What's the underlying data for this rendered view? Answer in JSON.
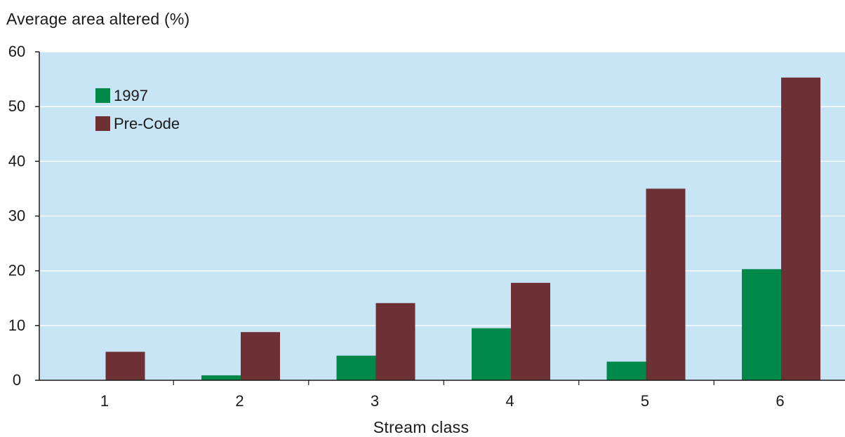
{
  "chart_data": {
    "type": "bar",
    "title": "",
    "ylabel": "Average area altered (%)",
    "xlabel": "Stream class",
    "categories": [
      "1",
      "2",
      "3",
      "4",
      "5",
      "6"
    ],
    "series": [
      {
        "name": "1997",
        "values": [
          0,
          0.9,
          4.5,
          9.5,
          3.4,
          20.3
        ],
        "color": "#00874a"
      },
      {
        "name": "Pre-Code",
        "values": [
          5.2,
          8.8,
          14.1,
          17.8,
          35.0,
          55.3
        ],
        "color": "#6d3135"
      }
    ],
    "ylim": [
      0,
      60
    ],
    "yticks": [
      0,
      10,
      20,
      30,
      40,
      50,
      60
    ],
    "grid": true,
    "legend_position": "top-left",
    "plot_background": "#c7e5f5",
    "gridline_color": "#ffffff"
  }
}
